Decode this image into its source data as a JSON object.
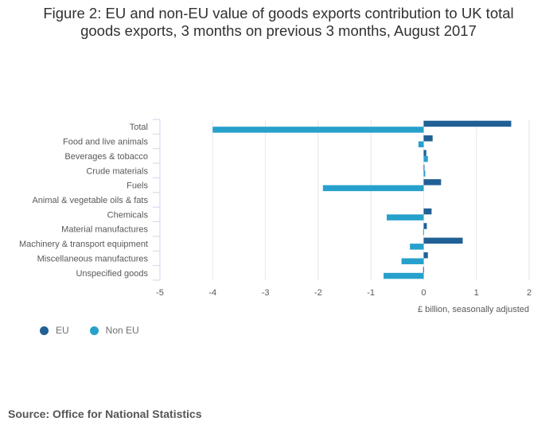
{
  "chart_data": {
    "type": "bar",
    "orientation": "horizontal",
    "title": "Figure 2: EU and non-EU value of goods exports contribution to UK total goods exports, 3 months on previous 3 months, August 2017",
    "title_lines": [
      "Figure 2: EU and non-EU value of goods exports contribution to UK total",
      "goods exports, 3 months on previous 3 months, August 2017"
    ],
    "categories": [
      "Total",
      "Food and live animals",
      "Beverages & tobacco",
      "Crude materials",
      "Fuels",
      "Animal & vegetable oils & fats",
      "Chemicals",
      "Material manufactures",
      "Machinery & transport equipment",
      "Miscellaneous manufactures",
      "Unspecified goods"
    ],
    "series": [
      {
        "name": "EU",
        "color": "#206095",
        "values": [
          1.66,
          0.17,
          0.05,
          0.01,
          0.33,
          0.0,
          0.15,
          0.06,
          0.74,
          0.08,
          -0.01
        ]
      },
      {
        "name": "Non EU",
        "color": "#27a0cc",
        "values": [
          -4.0,
          -0.1,
          0.08,
          0.03,
          -1.91,
          0.0,
          -0.7,
          -0.01,
          -0.26,
          -0.42,
          -0.76
        ]
      }
    ],
    "xlabel": "£ billion, seasonally adjusted",
    "ylabel": "",
    "xlim": [
      -5,
      2
    ],
    "xticks": [
      "-5",
      "-4",
      "-3",
      "-2",
      "-1",
      "0",
      "1",
      "2"
    ],
    "grid": true,
    "legend_position": "bottom-left"
  },
  "legend": [
    {
      "label": "EU",
      "color": "#206095"
    },
    {
      "label": "Non EU",
      "color": "#27a0cc"
    }
  ],
  "source": "Source: Office for National Statistics"
}
